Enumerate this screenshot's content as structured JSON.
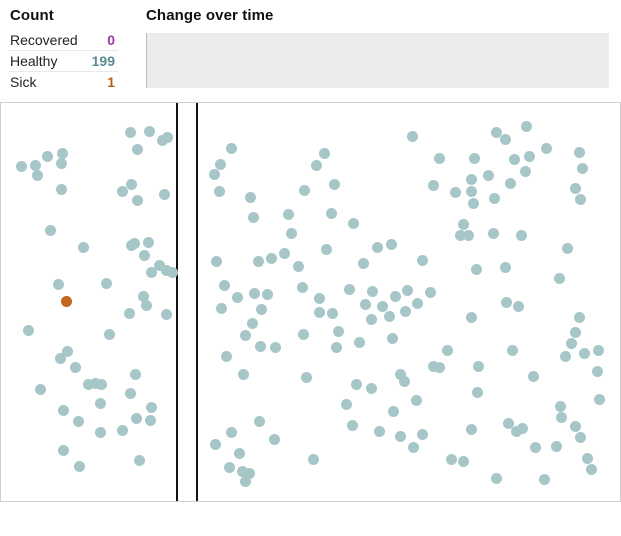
{
  "header": {
    "count_title": "Count",
    "change_title": "Change over time"
  },
  "counts": [
    {
      "label": "Recovered",
      "value": "0"
    },
    {
      "label": "Healthy",
      "value": "199"
    },
    {
      "label": "Sick",
      "value": "1"
    }
  ],
  "colors": {
    "recovered": "#9c3aa6",
    "healthy": "#5b8c94",
    "healthy_dot": "#a6c6c8",
    "sick": "#b95e13",
    "sick_dot": "#c5661e",
    "wall": "#111111",
    "timeline_bg": "#ececec"
  }
}
